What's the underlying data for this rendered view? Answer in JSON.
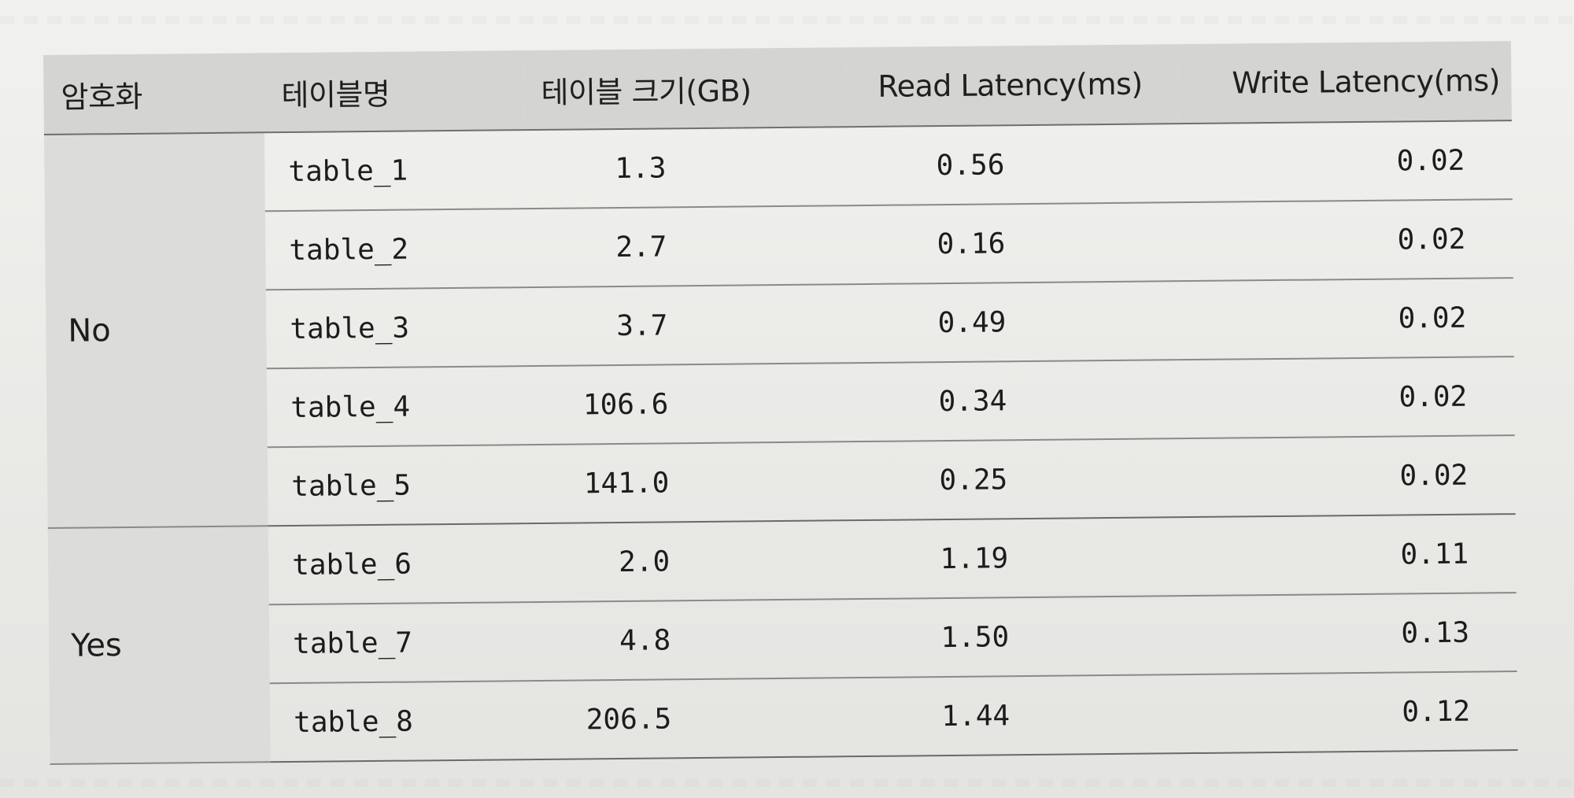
{
  "table": {
    "headers": {
      "encryption": "암호화",
      "table_name": "테이블명",
      "table_size": "테이블 크기(GB)",
      "read_latency": "Read Latency(ms)",
      "write_latency": "Write Latency(ms)"
    },
    "groups": [
      {
        "label": "No",
        "rows": [
          {
            "name": "table_1",
            "size": "1.3",
            "read": "0.56",
            "write": "0.02"
          },
          {
            "name": "table_2",
            "size": "2.7",
            "read": "0.16",
            "write": "0.02"
          },
          {
            "name": "table_3",
            "size": "3.7",
            "read": "0.49",
            "write": "0.02"
          },
          {
            "name": "table_4",
            "size": "106.6",
            "read": "0.34",
            "write": "0.02"
          },
          {
            "name": "table_5",
            "size": "141.0",
            "read": "0.25",
            "write": "0.02"
          }
        ]
      },
      {
        "label": "Yes",
        "rows": [
          {
            "name": "table_6",
            "size": "2.0",
            "read": "1.19",
            "write": "0.11"
          },
          {
            "name": "table_7",
            "size": "4.8",
            "read": "1.50",
            "write": "0.13"
          },
          {
            "name": "table_8",
            "size": "206.5",
            "read": "1.44",
            "write": "0.12"
          }
        ]
      }
    ]
  }
}
